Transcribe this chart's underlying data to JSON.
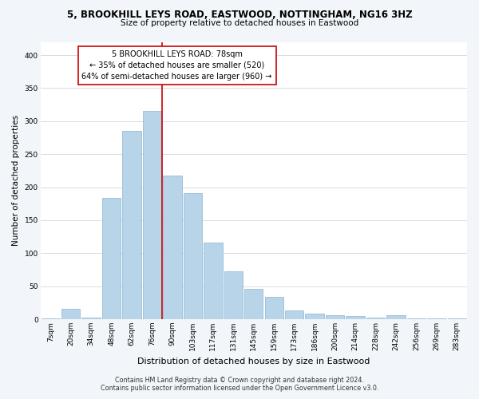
{
  "title": "5, BROOKHILL LEYS ROAD, EASTWOOD, NOTTINGHAM, NG16 3HZ",
  "subtitle": "Size of property relative to detached houses in Eastwood",
  "xlabel": "Distribution of detached houses by size in Eastwood",
  "ylabel": "Number of detached properties",
  "bin_labels": [
    "7sqm",
    "20sqm",
    "34sqm",
    "48sqm",
    "62sqm",
    "76sqm",
    "90sqm",
    "103sqm",
    "117sqm",
    "131sqm",
    "145sqm",
    "159sqm",
    "173sqm",
    "186sqm",
    "200sqm",
    "214sqm",
    "228sqm",
    "242sqm",
    "256sqm",
    "269sqm",
    "283sqm"
  ],
  "bar_heights": [
    1,
    16,
    2,
    184,
    285,
    315,
    218,
    191,
    116,
    72,
    46,
    34,
    13,
    8,
    6,
    5,
    3,
    6,
    1,
    1,
    1
  ],
  "bar_color": "#b8d4e8",
  "bar_edge_color": "#8ab4d0",
  "vline_index": 5,
  "vline_color": "#cc0000",
  "property_line_label": "5 BROOKHILL LEYS ROAD: 78sqm",
  "annotation_line1": "← 35% of detached houses are smaller (520)",
  "annotation_line2": "64% of semi-detached houses are larger (960) →",
  "annotation_box_color": "#ffffff",
  "annotation_box_edge": "#cc0000",
  "ylim": [
    0,
    420
  ],
  "yticks": [
    0,
    50,
    100,
    150,
    200,
    250,
    300,
    350,
    400
  ],
  "footnote1": "Contains HM Land Registry data © Crown copyright and database right 2024.",
  "footnote2": "Contains public sector information licensed under the Open Government Licence v3.0.",
  "bg_color": "#f2f6fa",
  "plot_bg_color": "#ffffff",
  "grid_color": "#d5dde5",
  "title_fontsize": 8.5,
  "subtitle_fontsize": 7.5,
  "ylabel_fontsize": 7.5,
  "xlabel_fontsize": 8.0,
  "tick_fontsize": 6.5,
  "annot_fontsize": 7.0,
  "footnote_fontsize": 5.8
}
